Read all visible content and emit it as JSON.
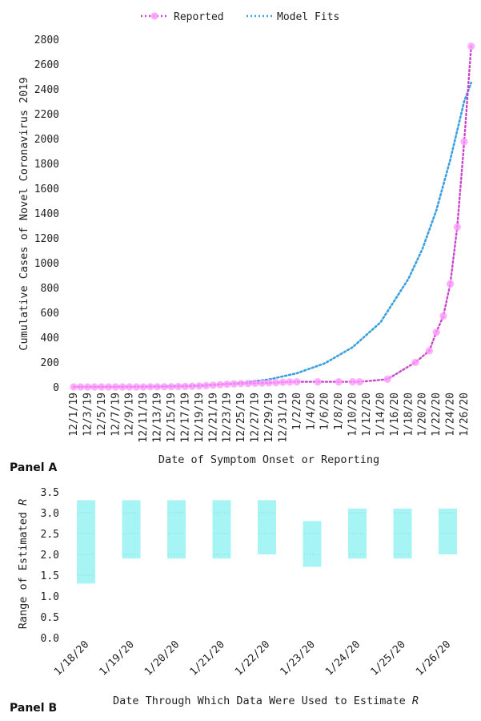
{
  "panels": {
    "a_label": "Panel A",
    "b_label": "Panel B"
  },
  "colors": {
    "reported": "#cc44cc",
    "reported_marker": "#ff99ff",
    "model": "#3aa0e0",
    "range_fill": "#a6f4f4",
    "range_grid": "#7ad8d8"
  },
  "chart_data": [
    {
      "type": "line",
      "xlabel": "Date of Symptom Onset or Reporting",
      "ylabel": "Cumulative Cases of Novel Coronavirus 2019",
      "ylim": [
        0,
        2800
      ],
      "yticks": [
        0,
        200,
        400,
        600,
        800,
        1000,
        1200,
        1400,
        1600,
        1800,
        2000,
        2200,
        2400,
        2600,
        2800
      ],
      "xticks": [
        "12/1/19",
        "12/3/19",
        "12/5/19",
        "12/7/19",
        "12/9/19",
        "12/11/19",
        "12/13/19",
        "12/15/19",
        "12/17/19",
        "12/19/19",
        "12/21/19",
        "12/23/19",
        "12/25/19",
        "12/27/19",
        "12/29/19",
        "12/31/19",
        "1/2/20",
        "1/4/20",
        "1/6/20",
        "1/8/20",
        "1/10/20",
        "1/12/20",
        "1/14/20",
        "1/16/20",
        "1/18/20",
        "1/20/20",
        "1/22/20",
        "1/24/20",
        "1/26/20"
      ],
      "xlim": [
        "12/1/19",
        "1/26/20"
      ],
      "grid": false,
      "legend_position": "top",
      "series": [
        {
          "name": "Reported",
          "style": "dotted-with-markers",
          "points": [
            {
              "x": "12/1/19",
              "y": 0
            },
            {
              "x": "12/2/19",
              "y": 0
            },
            {
              "x": "12/3/19",
              "y": 0
            },
            {
              "x": "12/4/19",
              "y": 0
            },
            {
              "x": "12/5/19",
              "y": 0
            },
            {
              "x": "12/6/19",
              "y": 0
            },
            {
              "x": "12/7/19",
              "y": 0
            },
            {
              "x": "12/8/19",
              "y": 0
            },
            {
              "x": "12/9/19",
              "y": 0
            },
            {
              "x": "12/10/19",
              "y": 0
            },
            {
              "x": "12/11/19",
              "y": 0
            },
            {
              "x": "12/12/19",
              "y": 1
            },
            {
              "x": "12/13/19",
              "y": 1
            },
            {
              "x": "12/14/19",
              "y": 1
            },
            {
              "x": "12/15/19",
              "y": 2
            },
            {
              "x": "12/16/19",
              "y": 3
            },
            {
              "x": "12/17/19",
              "y": 4
            },
            {
              "x": "12/18/19",
              "y": 6
            },
            {
              "x": "12/19/19",
              "y": 8
            },
            {
              "x": "12/20/19",
              "y": 10
            },
            {
              "x": "12/21/19",
              "y": 14
            },
            {
              "x": "12/22/19",
              "y": 18
            },
            {
              "x": "12/23/19",
              "y": 22
            },
            {
              "x": "12/24/19",
              "y": 25
            },
            {
              "x": "12/25/19",
              "y": 27
            },
            {
              "x": "12/26/19",
              "y": 28
            },
            {
              "x": "12/27/19",
              "y": 30
            },
            {
              "x": "12/28/19",
              "y": 31
            },
            {
              "x": "12/29/19",
              "y": 33
            },
            {
              "x": "12/30/19",
              "y": 35
            },
            {
              "x": "12/31/19",
              "y": 38
            },
            {
              "x": "1/1/20",
              "y": 40
            },
            {
              "x": "1/2/20",
              "y": 41
            },
            {
              "x": "1/5/20",
              "y": 41
            },
            {
              "x": "1/8/20",
              "y": 41
            },
            {
              "x": "1/10/20",
              "y": 41
            },
            {
              "x": "1/11/20",
              "y": 41
            },
            {
              "x": "1/15/20",
              "y": 62
            },
            {
              "x": "1/19/20",
              "y": 198
            },
            {
              "x": "1/21/20",
              "y": 291
            },
            {
              "x": "1/22/20",
              "y": 440
            },
            {
              "x": "1/23/20",
              "y": 571
            },
            {
              "x": "1/24/20",
              "y": 830
            },
            {
              "x": "1/25/20",
              "y": 1287
            },
            {
              "x": "1/26/20",
              "y": 1975
            },
            {
              "x": "1/27/20",
              "y": 2744
            }
          ]
        },
        {
          "name": "Model Fits",
          "style": "dotted",
          "points": [
            {
              "x": "12/1/19",
              "y": 0
            },
            {
              "x": "12/5/19",
              "y": 1
            },
            {
              "x": "12/9/19",
              "y": 2
            },
            {
              "x": "12/13/19",
              "y": 5
            },
            {
              "x": "12/17/19",
              "y": 9
            },
            {
              "x": "12/21/19",
              "y": 18
            },
            {
              "x": "12/25/19",
              "y": 32
            },
            {
              "x": "12/29/19",
              "y": 60
            },
            {
              "x": "1/2/20",
              "y": 110
            },
            {
              "x": "1/6/20",
              "y": 190
            },
            {
              "x": "1/10/20",
              "y": 320
            },
            {
              "x": "1/14/20",
              "y": 520
            },
            {
              "x": "1/18/20",
              "y": 870
            },
            {
              "x": "1/20/20",
              "y": 1110
            },
            {
              "x": "1/22/20",
              "y": 1420
            },
            {
              "x": "1/24/20",
              "y": 1830
            },
            {
              "x": "1/26/20",
              "y": 2300
            },
            {
              "x": "1/27/20",
              "y": 2450
            }
          ]
        }
      ]
    },
    {
      "type": "bar",
      "subtype": "floating-range",
      "xlabel_prefix": "Date Through Which Data Were Used to Estimate ",
      "xlabel_italic": "R",
      "ylabel_prefix": "Range of Estimated ",
      "ylabel_italic": "R",
      "ylim": [
        0.0,
        3.5
      ],
      "yticks": [
        "0.0",
        "0.5",
        "1.0",
        "1.5",
        "2.0",
        "2.5",
        "3.0",
        "3.5"
      ],
      "categories": [
        "1/18/20",
        "1/19/20",
        "1/20/20",
        "1/21/20",
        "1/22/20",
        "1/23/20",
        "1/24/20",
        "1/25/20",
        "1/26/20"
      ],
      "ranges": [
        [
          1.3,
          3.3
        ],
        [
          1.9,
          3.3
        ],
        [
          1.9,
          3.3
        ],
        [
          1.9,
          3.3
        ],
        [
          2.0,
          3.3
        ],
        [
          1.7,
          2.8
        ],
        [
          1.9,
          3.1
        ],
        [
          1.9,
          3.1
        ],
        [
          2.0,
          3.1
        ]
      ]
    }
  ]
}
